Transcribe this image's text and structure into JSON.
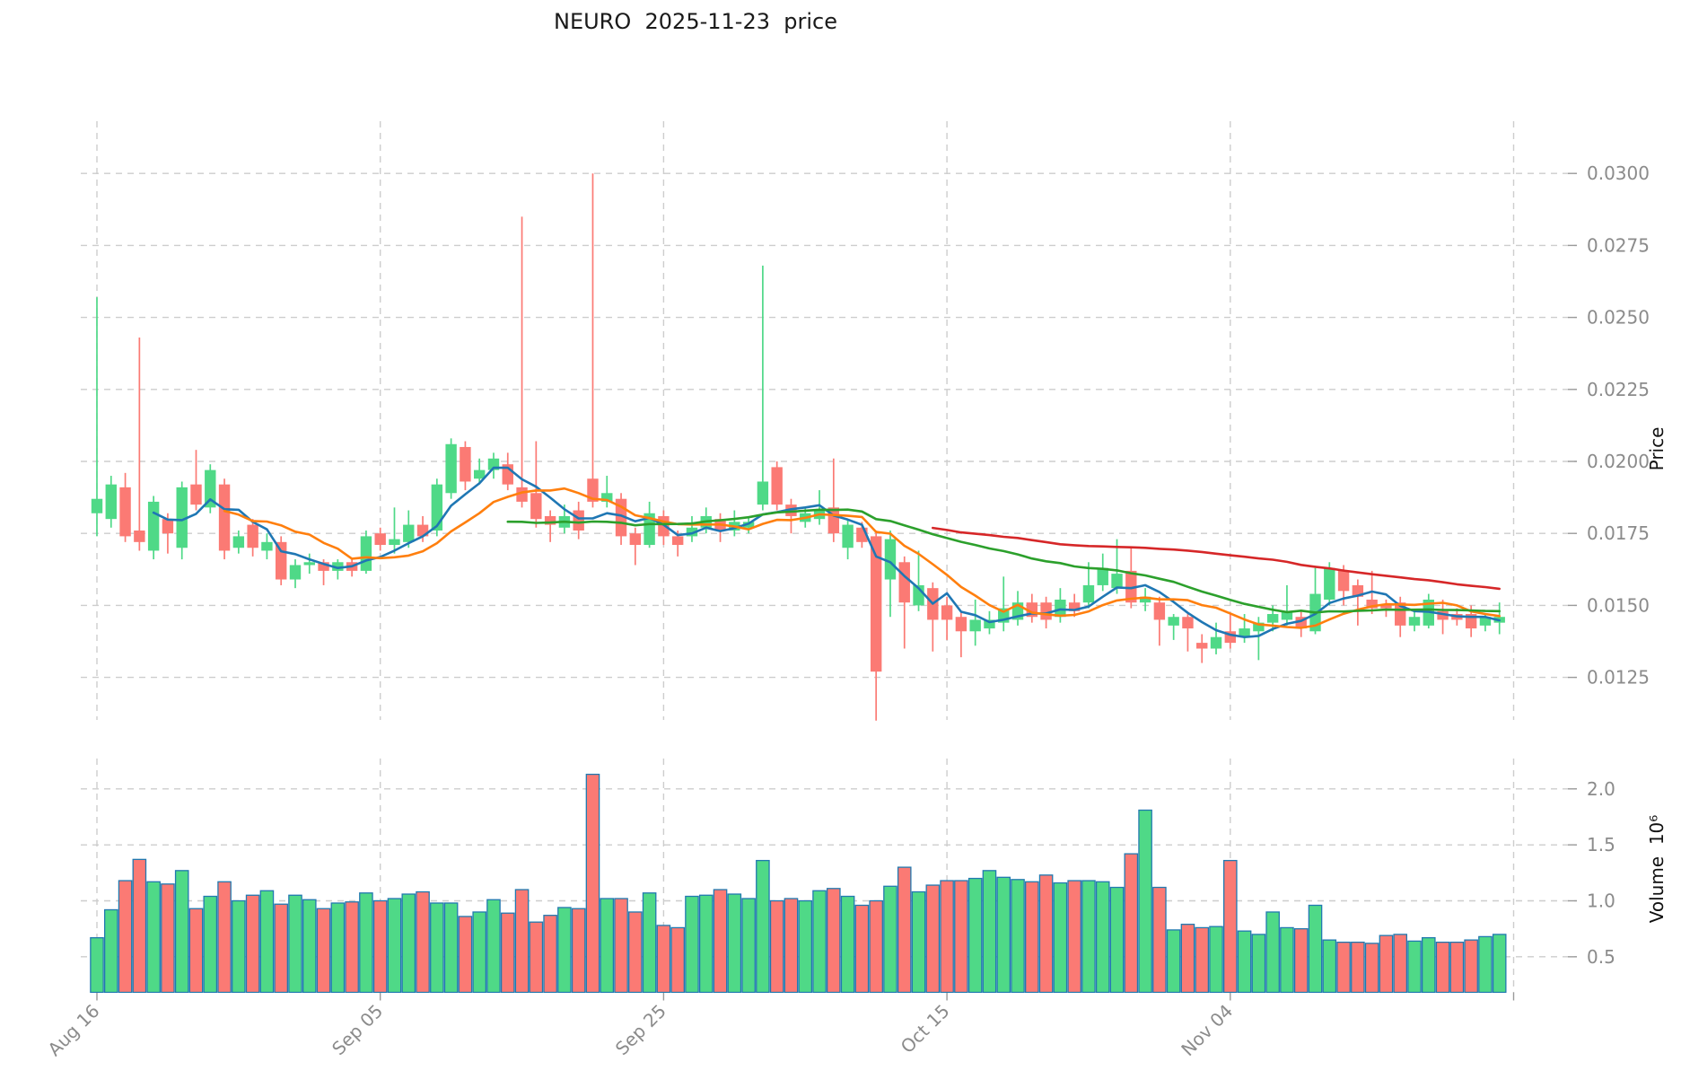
{
  "title": "NEURO  2025-11-23  price",
  "chart_data": {
    "type": "candlestick",
    "title": "NEURO  2025-11-23  price",
    "ylabel_price": "Price",
    "ylabel_volume": "Volume  10⁶",
    "grid": true,
    "legend_position": "none",
    "price_ylim": [
      0.011,
      0.0318
    ],
    "volume_ylim_millions": [
      0.18,
      2.27
    ],
    "price_ticks": [
      0.03,
      0.0275,
      0.025,
      0.0225,
      0.02,
      0.0175,
      0.015,
      0.0125
    ],
    "price_tick_labels": [
      "0.0300",
      "0.0275",
      "0.0250",
      "0.0225",
      "0.0200",
      "0.0175",
      "0.0150",
      "0.0125"
    ],
    "volume_ticks_millions": [
      2.0,
      1.5,
      1.0,
      0.5
    ],
    "volume_tick_labels": [
      "2.0",
      "1.5",
      "1.0",
      "0.5"
    ],
    "x_ticks": [
      {
        "index": 0,
        "label": "Aug 16"
      },
      {
        "index": 20,
        "label": "Sep 05"
      },
      {
        "index": 40,
        "label": "Sep 25"
      },
      {
        "index": 60,
        "label": "Oct 15"
      },
      {
        "index": 80,
        "label": "Nov 04"
      },
      {
        "index": 100,
        "label": ""
      }
    ],
    "colors": {
      "up": "#4fd987",
      "down": "#fb7a74",
      "volume_edge": "#2179b0",
      "grid": "#cdcdcd",
      "tick_text": "#8b8b8b",
      "ma5": "#1f77b4",
      "ma10": "#ff7f0e",
      "ma30": "#2ca02c",
      "ma60": "#d62728"
    },
    "moving_averages": [
      {
        "name": "MA5",
        "window": 5,
        "color": "#1f77b4"
      },
      {
        "name": "MA10",
        "window": 10,
        "color": "#ff7f0e"
      },
      {
        "name": "MA30",
        "window": 30,
        "color": "#2ca02c"
      },
      {
        "name": "MA60",
        "window": 60,
        "color": "#d62728"
      }
    ],
    "dates": [
      "2025-08-16",
      "2025-08-17",
      "2025-08-18",
      "2025-08-19",
      "2025-08-20",
      "2025-08-21",
      "2025-08-22",
      "2025-08-23",
      "2025-08-24",
      "2025-08-25",
      "2025-08-26",
      "2025-08-27",
      "2025-08-28",
      "2025-08-29",
      "2025-08-30",
      "2025-08-31",
      "2025-09-01",
      "2025-09-02",
      "2025-09-03",
      "2025-09-04",
      "2025-09-05",
      "2025-09-06",
      "2025-09-07",
      "2025-09-08",
      "2025-09-09",
      "2025-09-10",
      "2025-09-11",
      "2025-09-12",
      "2025-09-13",
      "2025-09-14",
      "2025-09-15",
      "2025-09-16",
      "2025-09-17",
      "2025-09-18",
      "2025-09-19",
      "2025-09-20",
      "2025-09-21",
      "2025-09-22",
      "2025-09-23",
      "2025-09-24",
      "2025-09-25",
      "2025-09-26",
      "2025-09-27",
      "2025-09-28",
      "2025-09-29",
      "2025-09-30",
      "2025-10-01",
      "2025-10-02",
      "2025-10-03",
      "2025-10-04",
      "2025-10-05",
      "2025-10-06",
      "2025-10-07",
      "2025-10-08",
      "2025-10-09",
      "2025-10-10",
      "2025-10-11",
      "2025-10-12",
      "2025-10-13",
      "2025-10-14",
      "2025-10-15",
      "2025-10-16",
      "2025-10-17",
      "2025-10-18",
      "2025-10-19",
      "2025-10-20",
      "2025-10-21",
      "2025-10-22",
      "2025-10-23",
      "2025-10-24",
      "2025-10-25",
      "2025-10-26",
      "2025-10-27",
      "2025-10-28",
      "2025-10-29",
      "2025-10-30",
      "2025-10-31",
      "2025-11-01",
      "2025-11-02",
      "2025-11-03",
      "2025-11-04",
      "2025-11-05",
      "2025-11-06",
      "2025-11-07",
      "2025-11-08",
      "2025-11-09",
      "2025-11-10",
      "2025-11-11",
      "2025-11-12",
      "2025-11-13",
      "2025-11-14",
      "2025-11-15",
      "2025-11-16",
      "2025-11-17",
      "2025-11-18",
      "2025-11-19",
      "2025-11-20",
      "2025-11-21",
      "2025-11-22",
      "2025-11-23"
    ],
    "series": {
      "open": [
        0.0182,
        0.018,
        0.0191,
        0.0176,
        0.0169,
        0.018,
        0.017,
        0.0192,
        0.0184,
        0.0192,
        0.017,
        0.0178,
        0.0169,
        0.0172,
        0.0159,
        0.0164,
        0.0165,
        0.0162,
        0.0165,
        0.0162,
        0.0175,
        0.0171,
        0.0172,
        0.0178,
        0.0176,
        0.0189,
        0.0205,
        0.0194,
        0.0197,
        0.0199,
        0.0191,
        0.0189,
        0.0181,
        0.0177,
        0.0183,
        0.0194,
        0.0186,
        0.0187,
        0.0175,
        0.0171,
        0.0181,
        0.0174,
        0.0174,
        0.0177,
        0.018,
        0.0176,
        0.0177,
        0.0185,
        0.0198,
        0.0185,
        0.0179,
        0.018,
        0.0184,
        0.017,
        0.0177,
        0.0174,
        0.0159,
        0.0165,
        0.015,
        0.0156,
        0.015,
        0.0146,
        0.0141,
        0.0142,
        0.0144,
        0.0145,
        0.0151,
        0.0151,
        0.0146,
        0.0151,
        0.0151,
        0.0157,
        0.0156,
        0.0162,
        0.0151,
        0.0151,
        0.0143,
        0.0146,
        0.0137,
        0.0135,
        0.0141,
        0.0139,
        0.0141,
        0.0144,
        0.0145,
        0.0146,
        0.0141,
        0.0152,
        0.0162,
        0.0157,
        0.0152,
        0.015,
        0.0151,
        0.0143,
        0.0143,
        0.0148,
        0.0147,
        0.0147,
        0.0143,
        0.0144
      ],
      "high": [
        0.0257,
        0.0195,
        0.0196,
        0.0243,
        0.0188,
        0.0182,
        0.0193,
        0.0204,
        0.0199,
        0.0194,
        0.0176,
        0.018,
        0.0175,
        0.0174,
        0.0166,
        0.0168,
        0.0166,
        0.0166,
        0.0166,
        0.0176,
        0.0177,
        0.0184,
        0.0183,
        0.0181,
        0.0194,
        0.0208,
        0.0207,
        0.0201,
        0.0203,
        0.0203,
        0.0285,
        0.0207,
        0.0183,
        0.0185,
        0.0186,
        0.03,
        0.0195,
        0.0189,
        0.0177,
        0.0186,
        0.0183,
        0.0176,
        0.0181,
        0.0184,
        0.0182,
        0.0183,
        0.0181,
        0.0268,
        0.02,
        0.0187,
        0.0184,
        0.019,
        0.0201,
        0.018,
        0.0179,
        0.0176,
        0.0176,
        0.0167,
        0.0169,
        0.0158,
        0.0153,
        0.0148,
        0.0152,
        0.0148,
        0.016,
        0.0155,
        0.0154,
        0.0153,
        0.0156,
        0.0154,
        0.0165,
        0.0168,
        0.0173,
        0.017,
        0.0156,
        0.0153,
        0.0147,
        0.0147,
        0.014,
        0.0144,
        0.0147,
        0.0147,
        0.0146,
        0.015,
        0.0157,
        0.0148,
        0.0163,
        0.0165,
        0.0164,
        0.0159,
        0.0162,
        0.0152,
        0.0153,
        0.0148,
        0.0154,
        0.0152,
        0.0149,
        0.015,
        0.0147,
        0.0151
      ],
      "low": [
        0.0174,
        0.0177,
        0.0172,
        0.0169,
        0.0166,
        0.0168,
        0.0166,
        0.0183,
        0.0182,
        0.0166,
        0.0168,
        0.0167,
        0.0166,
        0.0157,
        0.0156,
        0.0161,
        0.0157,
        0.0159,
        0.016,
        0.0161,
        0.0169,
        0.0168,
        0.017,
        0.0172,
        0.0174,
        0.0187,
        0.019,
        0.0192,
        0.0194,
        0.019,
        0.0184,
        0.0177,
        0.0172,
        0.0175,
        0.0173,
        0.0184,
        0.0184,
        0.0171,
        0.0164,
        0.017,
        0.0171,
        0.0167,
        0.0172,
        0.0175,
        0.0172,
        0.0174,
        0.0175,
        0.0183,
        0.0183,
        0.0175,
        0.0177,
        0.0178,
        0.0172,
        0.0166,
        0.017,
        0.011,
        0.0146,
        0.0135,
        0.0148,
        0.0134,
        0.0138,
        0.0132,
        0.0136,
        0.014,
        0.0141,
        0.0143,
        0.0144,
        0.0142,
        0.0144,
        0.0146,
        0.0149,
        0.0155,
        0.0154,
        0.0149,
        0.0148,
        0.0136,
        0.0138,
        0.0134,
        0.013,
        0.0133,
        0.0135,
        0.0137,
        0.0131,
        0.0141,
        0.0143,
        0.0139,
        0.014,
        0.015,
        0.015,
        0.0143,
        0.0147,
        0.0146,
        0.0139,
        0.0141,
        0.0142,
        0.014,
        0.0143,
        0.0139,
        0.0141,
        0.014
      ],
      "close": [
        0.0187,
        0.0192,
        0.0174,
        0.0172,
        0.0186,
        0.0175,
        0.0191,
        0.0185,
        0.0197,
        0.0169,
        0.0174,
        0.017,
        0.0172,
        0.0159,
        0.0164,
        0.0165,
        0.0162,
        0.0165,
        0.0162,
        0.0174,
        0.0171,
        0.0173,
        0.0178,
        0.0174,
        0.0192,
        0.0206,
        0.0193,
        0.0197,
        0.0201,
        0.0192,
        0.0186,
        0.018,
        0.0178,
        0.0181,
        0.0176,
        0.0186,
        0.0189,
        0.0174,
        0.0171,
        0.0182,
        0.0174,
        0.0171,
        0.0177,
        0.0181,
        0.0176,
        0.0179,
        0.0179,
        0.0193,
        0.0185,
        0.0181,
        0.0182,
        0.0183,
        0.0175,
        0.0178,
        0.0172,
        0.0127,
        0.0173,
        0.0151,
        0.0157,
        0.0145,
        0.0145,
        0.0141,
        0.0145,
        0.0145,
        0.0149,
        0.0151,
        0.0146,
        0.0145,
        0.0152,
        0.0148,
        0.0157,
        0.0163,
        0.0161,
        0.0151,
        0.0153,
        0.0145,
        0.0146,
        0.0142,
        0.0135,
        0.0139,
        0.0137,
        0.0142,
        0.0144,
        0.0147,
        0.0148,
        0.0142,
        0.0154,
        0.0163,
        0.0155,
        0.0153,
        0.0149,
        0.0149,
        0.0143,
        0.0146,
        0.0152,
        0.0145,
        0.0145,
        0.0142,
        0.0146,
        0.0146
      ]
    },
    "volume_millions": [
      0.67,
      0.92,
      1.18,
      1.37,
      1.17,
      1.15,
      1.27,
      0.93,
      1.04,
      1.17,
      1.0,
      1.05,
      1.09,
      0.97,
      1.05,
      1.01,
      0.93,
      0.98,
      0.99,
      1.07,
      1.0,
      1.02,
      1.06,
      1.08,
      0.98,
      0.98,
      0.86,
      0.9,
      1.01,
      0.89,
      1.1,
      0.81,
      0.87,
      0.94,
      0.93,
      2.13,
      1.02,
      1.02,
      0.9,
      1.07,
      0.78,
      0.76,
      1.04,
      1.05,
      1.1,
      1.06,
      1.02,
      1.36,
      1.0,
      1.02,
      1.0,
      1.09,
      1.11,
      1.04,
      0.96,
      1.0,
      1.13,
      1.3,
      1.08,
      1.14,
      1.18,
      1.18,
      1.2,
      1.27,
      1.21,
      1.19,
      1.17,
      1.23,
      1.16,
      1.18,
      1.18,
      1.17,
      1.12,
      1.42,
      1.81,
      1.12,
      0.74,
      0.79,
      0.76,
      0.77,
      1.36,
      0.73,
      0.7,
      0.9,
      0.76,
      0.75,
      0.96,
      0.65,
      0.63,
      0.63,
      0.62,
      0.69,
      0.7,
      0.64,
      0.67,
      0.63,
      0.63,
      0.65,
      0.68,
      0.7
    ]
  }
}
